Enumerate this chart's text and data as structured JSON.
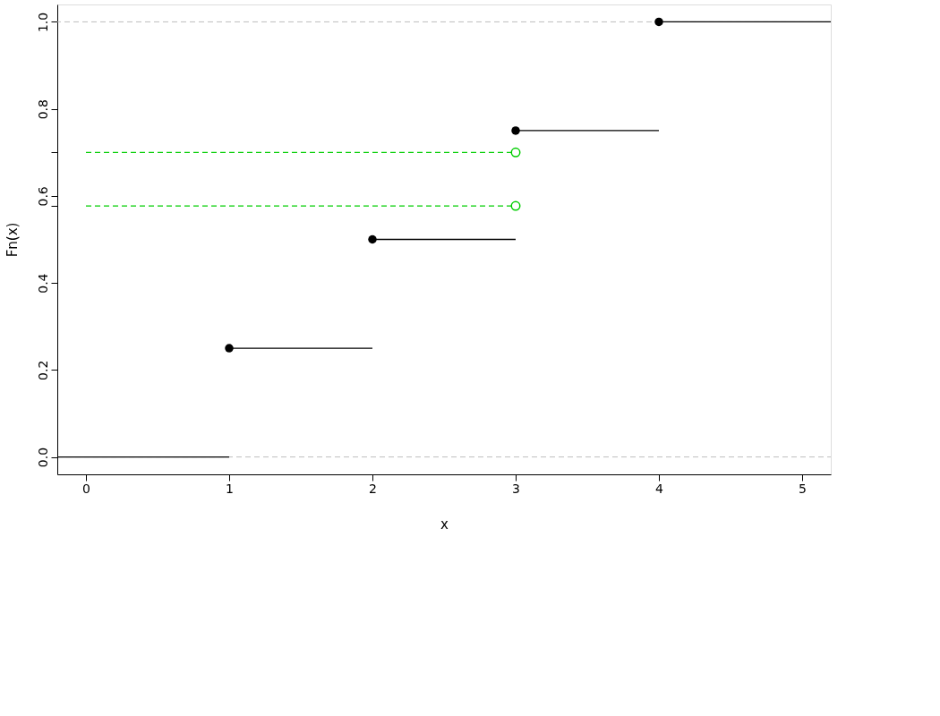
{
  "chart_data": {
    "type": "line",
    "xlabel": "x",
    "ylabel": "Fn(x)",
    "xlim": [
      -0.2,
      5.2
    ],
    "xticks": [
      0,
      1,
      2,
      3,
      4,
      5
    ],
    "ylim": [
      -0.04,
      1.04
    ],
    "yticks": [
      {
        "value": 0,
        "label": "0.0"
      },
      {
        "value": 0.2,
        "label": "0.2"
      },
      {
        "value": 0.4,
        "label": "0.4"
      },
      {
        "value": 0.577,
        "label": null
      },
      {
        "value": 0.6,
        "label": "0.6"
      },
      {
        "value": 0.7,
        "label": null
      },
      {
        "value": 0.8,
        "label": "0.8"
      },
      {
        "value": 1,
        "label": "1.0"
      }
    ],
    "grid": false,
    "ref_lines": [
      {
        "axis": "y",
        "value": 0,
        "color": "#bebebe",
        "line_style": "dashed"
      },
      {
        "axis": "y",
        "value": 1,
        "color": "#bebebe",
        "line_style": "dashed"
      }
    ],
    "series": [
      {
        "color": "#000000",
        "x": [
          -0.2,
          1
        ],
        "values": [
          0,
          0
        ]
      },
      {
        "color": "#000000",
        "x": [
          1,
          2
        ],
        "values": [
          0.25,
          0.25
        ]
      },
      {
        "color": "#000000",
        "x": [
          2,
          3
        ],
        "values": [
          0.5,
          0.5
        ]
      },
      {
        "color": "#000000",
        "x": [
          3,
          4
        ],
        "values": [
          0.75,
          0.75
        ]
      },
      {
        "color": "#000000",
        "x": [
          4,
          5.2
        ],
        "values": [
          1,
          1
        ]
      },
      {
        "type": "scatter",
        "color": "#000000",
        "marker": "circle",
        "x": [
          1,
          2,
          3,
          4
        ],
        "values": [
          0.25,
          0.5,
          0.75,
          1
        ]
      },
      {
        "color": "#00cd00",
        "line_style": "dashed",
        "x": [
          0,
          3
        ],
        "values": [
          0.7,
          0.7
        ]
      },
      {
        "color": "#00cd00",
        "line_style": "dashed",
        "x": [
          0,
          3
        ],
        "values": [
          0.577,
          0.577
        ]
      },
      {
        "type": "scatter",
        "color": "#00cd00",
        "marker": "circle",
        "x": [
          3,
          3
        ],
        "values": [
          0.7,
          0.577
        ]
      }
    ]
  }
}
